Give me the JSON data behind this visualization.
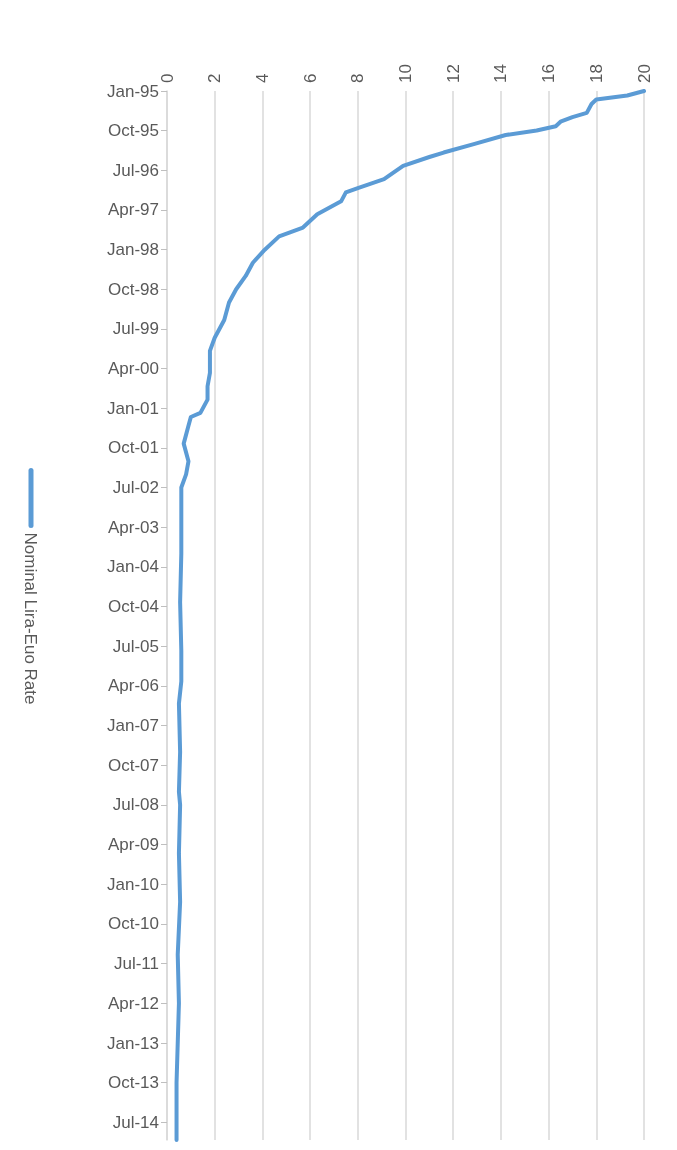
{
  "chart_data": {
    "type": "line",
    "orientation": "horizontal",
    "legend": "left",
    "grid": "x",
    "x": [
      "1995-01",
      "1995-02",
      "1995-03",
      "1995-04",
      "1995-06",
      "1995-07",
      "1995-08",
      "1995-09",
      "1995-10",
      "1995-11",
      "1996-01",
      "1996-03",
      "1996-04",
      "1996-06",
      "1996-09",
      "1996-11",
      "1996-12",
      "1997-02",
      "1997-05",
      "1997-08",
      "1997-10",
      "1998-01",
      "1998-04",
      "1998-07",
      "1998-10",
      "1999-01",
      "1999-05",
      "1999-09",
      "1999-12",
      "2000-05",
      "2000-08",
      "2000-11",
      "2001-02",
      "2001-03",
      "2001-05",
      "2001-09",
      "2002-01",
      "2002-04",
      "2002-07",
      "2002-12",
      "2003-10",
      "2004-09",
      "2005-08",
      "2006-03",
      "2006-08",
      "2007-07",
      "2008-04",
      "2008-07",
      "2009-06",
      "2010-05",
      "2011-05",
      "2012-04",
      "2013-10",
      "2014-11"
    ],
    "series": [
      {
        "name": "Nominal Lira-Euo Rate",
        "color": "#5b9bd5",
        "values": [
          20.0,
          19.3,
          18.0,
          17.8,
          17.6,
          17.0,
          16.5,
          16.3,
          15.5,
          14.2,
          12.9,
          11.6,
          11.0,
          9.9,
          9.1,
          8.0,
          7.5,
          7.3,
          6.3,
          5.7,
          4.7,
          4.1,
          3.6,
          3.3,
          2.9,
          2.6,
          2.4,
          2.0,
          1.8,
          1.8,
          1.7,
          1.7,
          1.4,
          1.0,
          0.9,
          0.7,
          0.9,
          0.8,
          0.6,
          0.6,
          0.6,
          0.55,
          0.6,
          0.6,
          0.5,
          0.55,
          0.5,
          0.55,
          0.5,
          0.55,
          0.45,
          0.5,
          0.4,
          0.4
        ]
      }
    ],
    "xlim": [
      0,
      20
    ],
    "xticks": [
      0,
      2,
      4,
      6,
      8,
      10,
      12,
      14,
      16,
      18,
      20
    ],
    "ylim": [
      "2014-11",
      "1995-01"
    ],
    "yticks": [
      {
        "value": "1995-01",
        "label": "Jan-95"
      },
      {
        "value": "1995-10",
        "label": "Oct-95"
      },
      {
        "value": "1996-07",
        "label": "Jul-96"
      },
      {
        "value": "1997-04",
        "label": "Apr-97"
      },
      {
        "value": "1998-01",
        "label": "Jan-98"
      },
      {
        "value": "1998-10",
        "label": "Oct-98"
      },
      {
        "value": "1999-07",
        "label": "Jul-99"
      },
      {
        "value": "2000-04",
        "label": "Apr-00"
      },
      {
        "value": "2001-01",
        "label": "Jan-01"
      },
      {
        "value": "2001-10",
        "label": "Oct-01"
      },
      {
        "value": "2002-07",
        "label": "Jul-02"
      },
      {
        "value": "2003-04",
        "label": "Apr-03"
      },
      {
        "value": "2004-01",
        "label": "Jan-04"
      },
      {
        "value": "2004-10",
        "label": "Oct-04"
      },
      {
        "value": "2005-07",
        "label": "Jul-05"
      },
      {
        "value": "2006-04",
        "label": "Apr-06"
      },
      {
        "value": "2007-01",
        "label": "Jan-07"
      },
      {
        "value": "2007-10",
        "label": "Oct-07"
      },
      {
        "value": "2008-07",
        "label": "Jul-08"
      },
      {
        "value": "2009-04",
        "label": "Apr-09"
      },
      {
        "value": "2010-01",
        "label": "Jan-10"
      },
      {
        "value": "2010-10",
        "label": "Oct-10"
      },
      {
        "value": "2011-07",
        "label": "Jul-11"
      },
      {
        "value": "2012-04",
        "label": "Apr-12"
      },
      {
        "value": "2013-01",
        "label": "Jan-13"
      },
      {
        "value": "2013-10",
        "label": "Oct-13"
      },
      {
        "value": "2014-07",
        "label": "Jul-14"
      }
    ],
    "marker": "none",
    "line_style": "solid"
  }
}
